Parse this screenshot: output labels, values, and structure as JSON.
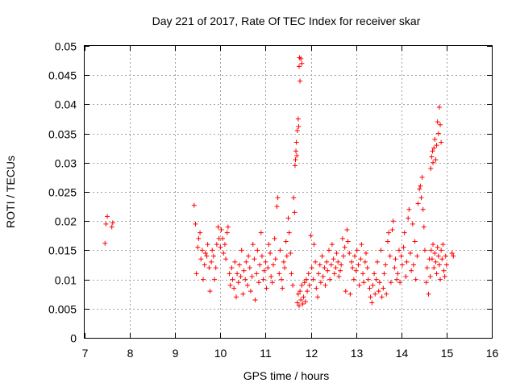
{
  "chart_data": {
    "type": "scatter",
    "title": "Day 221 of 2017, Rate Of TEC Index for receiver skar",
    "xlabel": "GPS time / hours",
    "ylabel": "ROTI / TECUs",
    "xlim": [
      7,
      16
    ],
    "ylim": [
      0,
      0.05
    ],
    "x_ticks": [
      7,
      8,
      9,
      10,
      11,
      12,
      13,
      14,
      15,
      16
    ],
    "x_tick_labels": [
      "7",
      "8",
      "9",
      "10",
      "11",
      "12",
      "13",
      "14",
      "15",
      "16"
    ],
    "y_ticks": [
      0,
      0.005,
      0.01,
      0.015,
      0.02,
      0.025,
      0.03,
      0.035,
      0.04,
      0.045,
      0.05
    ],
    "y_tick_labels": [
      "0",
      "0.005",
      "0.01",
      "0.015",
      "0.02",
      "0.025",
      "0.03",
      "0.035",
      "0.04",
      "0.045",
      "0.05"
    ],
    "grid": true,
    "marker": "plus",
    "series": [
      {
        "name": "ROTI",
        "color": "#ff0000",
        "points": [
          [
            7.45,
            0.0162
          ],
          [
            7.47,
            0.0195
          ],
          [
            7.5,
            0.0208
          ],
          [
            7.6,
            0.019
          ],
          [
            7.62,
            0.0197
          ],
          [
            9.42,
            0.0227
          ],
          [
            9.45,
            0.0195
          ],
          [
            9.47,
            0.011
          ],
          [
            9.5,
            0.0155
          ],
          [
            9.52,
            0.017
          ],
          [
            9.55,
            0.018
          ],
          [
            9.57,
            0.0135
          ],
          [
            9.6,
            0.015
          ],
          [
            9.62,
            0.01
          ],
          [
            9.65,
            0.0125
          ],
          [
            9.67,
            0.0145
          ],
          [
            9.7,
            0.014
          ],
          [
            9.72,
            0.016
          ],
          [
            9.75,
            0.012
          ],
          [
            9.77,
            0.008
          ],
          [
            9.8,
            0.013
          ],
          [
            9.82,
            0.015
          ],
          [
            9.85,
            0.014
          ],
          [
            9.87,
            0.01
          ],
          [
            9.9,
            0.012
          ],
          [
            9.92,
            0.016
          ],
          [
            9.95,
            0.019
          ],
          [
            9.97,
            0.017
          ],
          [
            10.0,
            0.0155
          ],
          [
            10.02,
            0.0185
          ],
          [
            10.05,
            0.017
          ],
          [
            10.07,
            0.0145
          ],
          [
            10.1,
            0.016
          ],
          [
            10.12,
            0.0135
          ],
          [
            10.15,
            0.018
          ],
          [
            10.17,
            0.019
          ],
          [
            10.2,
            0.011
          ],
          [
            10.22,
            0.009
          ],
          [
            10.25,
            0.012
          ],
          [
            10.27,
            0.01
          ],
          [
            10.3,
            0.0085
          ],
          [
            10.32,
            0.013
          ],
          [
            10.35,
            0.007
          ],
          [
            10.37,
            0.011
          ],
          [
            10.4,
            0.0095
          ],
          [
            10.42,
            0.0125
          ],
          [
            10.45,
            0.0105
          ],
          [
            10.47,
            0.015
          ],
          [
            10.5,
            0.0075
          ],
          [
            10.52,
            0.0115
          ],
          [
            10.55,
            0.01
          ],
          [
            10.57,
            0.013
          ],
          [
            10.6,
            0.009
          ],
          [
            10.62,
            0.014
          ],
          [
            10.65,
            0.012
          ],
          [
            10.67,
            0.008
          ],
          [
            10.7,
            0.0105
          ],
          [
            10.72,
            0.016
          ],
          [
            10.75,
            0.0135
          ],
          [
            10.77,
            0.0065
          ],
          [
            10.8,
            0.011
          ],
          [
            10.82,
            0.015
          ],
          [
            10.85,
            0.0095
          ],
          [
            10.87,
            0.0125
          ],
          [
            10.9,
            0.018
          ],
          [
            10.92,
            0.014
          ],
          [
            10.95,
            0.01
          ],
          [
            10.97,
            0.0115
          ],
          [
            11.0,
            0.013
          ],
          [
            11.02,
            0.0085
          ],
          [
            11.05,
            0.012
          ],
          [
            11.07,
            0.016
          ],
          [
            11.1,
            0.0145
          ],
          [
            11.12,
            0.0105
          ],
          [
            11.15,
            0.0095
          ],
          [
            11.17,
            0.0125
          ],
          [
            11.2,
            0.017
          ],
          [
            11.22,
            0.0135
          ],
          [
            11.25,
            0.0225
          ],
          [
            11.27,
            0.024
          ],
          [
            11.3,
            0.011
          ],
          [
            11.32,
            0.015
          ],
          [
            11.35,
            0.01
          ],
          [
            11.37,
            0.0085
          ],
          [
            11.4,
            0.013
          ],
          [
            11.42,
            0.012
          ],
          [
            11.45,
            0.0165
          ],
          [
            11.47,
            0.014
          ],
          [
            11.5,
            0.0205
          ],
          [
            11.52,
            0.018
          ],
          [
            11.55,
            0.0145
          ],
          [
            11.57,
            0.011
          ],
          [
            11.6,
            0.009
          ],
          [
            11.62,
            0.024
          ],
          [
            11.64,
            0.0215
          ],
          [
            11.65,
            0.0295
          ],
          [
            11.66,
            0.0305
          ],
          [
            11.67,
            0.032
          ],
          [
            11.68,
            0.0335
          ],
          [
            11.69,
            0.0312
          ],
          [
            11.7,
            0.0355
          ],
          [
            11.72,
            0.0375
          ],
          [
            11.73,
            0.0362
          ],
          [
            11.74,
            0.0465
          ],
          [
            11.75,
            0.048
          ],
          [
            11.76,
            0.044
          ],
          [
            11.78,
            0.0478
          ],
          [
            11.8,
            0.047
          ],
          [
            11.7,
            0.006
          ],
          [
            11.72,
            0.0075
          ],
          [
            11.74,
            0.0055
          ],
          [
            11.76,
            0.008
          ],
          [
            11.78,
            0.0065
          ],
          [
            11.8,
            0.009
          ],
          [
            11.82,
            0.0058
          ],
          [
            11.84,
            0.007
          ],
          [
            11.86,
            0.0095
          ],
          [
            11.88,
            0.0062
          ],
          [
            11.9,
            0.01
          ],
          [
            11.92,
            0.008
          ],
          [
            11.95,
            0.011
          ],
          [
            11.97,
            0.009
          ],
          [
            12.0,
            0.0175
          ],
          [
            12.02,
            0.012
          ],
          [
            12.05,
            0.01
          ],
          [
            12.07,
            0.016
          ],
          [
            12.1,
            0.013
          ],
          [
            12.12,
            0.0085
          ],
          [
            12.15,
            0.007
          ],
          [
            12.17,
            0.011
          ],
          [
            12.2,
            0.0125
          ],
          [
            12.22,
            0.0095
          ],
          [
            12.25,
            0.014
          ],
          [
            12.27,
            0.0105
          ],
          [
            12.3,
            0.012
          ],
          [
            12.32,
            0.009
          ],
          [
            12.35,
            0.013
          ],
          [
            12.37,
            0.0115
          ],
          [
            12.4,
            0.015
          ],
          [
            12.42,
            0.01
          ],
          [
            12.45,
            0.0125
          ],
          [
            12.47,
            0.016
          ],
          [
            12.5,
            0.0135
          ],
          [
            12.52,
            0.011
          ],
          [
            12.55,
            0.012
          ],
          [
            12.57,
            0.0145
          ],
          [
            12.6,
            0.013
          ],
          [
            12.62,
            0.0105
          ],
          [
            12.65,
            0.0115
          ],
          [
            12.67,
            0.0125
          ],
          [
            12.7,
            0.017
          ],
          [
            12.72,
            0.014
          ],
          [
            12.75,
            0.0155
          ],
          [
            12.77,
            0.008
          ],
          [
            12.8,
            0.0185
          ],
          [
            12.82,
            0.0165
          ],
          [
            12.85,
            0.0145
          ],
          [
            12.87,
            0.0075
          ],
          [
            12.9,
            0.013
          ],
          [
            12.92,
            0.012
          ],
          [
            12.95,
            0.01
          ],
          [
            12.97,
            0.014
          ],
          [
            13.0,
            0.0115
          ],
          [
            13.02,
            0.015
          ],
          [
            13.05,
            0.0125
          ],
          [
            13.07,
            0.009
          ],
          [
            13.1,
            0.0135
          ],
          [
            13.12,
            0.016
          ],
          [
            13.15,
            0.011
          ],
          [
            13.17,
            0.0095
          ],
          [
            13.2,
            0.013
          ],
          [
            13.22,
            0.0145
          ],
          [
            13.25,
            0.012
          ],
          [
            13.27,
            0.01
          ],
          [
            13.3,
            0.0085
          ],
          [
            13.32,
            0.007
          ],
          [
            13.35,
            0.006
          ],
          [
            13.37,
            0.009
          ],
          [
            13.4,
            0.011
          ],
          [
            13.42,
            0.0075
          ],
          [
            13.45,
            0.01
          ],
          [
            13.47,
            0.013
          ],
          [
            13.5,
            0.008
          ],
          [
            13.52,
            0.0095
          ],
          [
            13.55,
            0.015
          ],
          [
            13.57,
            0.007
          ],
          [
            13.6,
            0.0085
          ],
          [
            13.62,
            0.011
          ],
          [
            13.65,
            0.0125
          ],
          [
            13.67,
            0.0075
          ],
          [
            13.7,
            0.0165
          ],
          [
            13.72,
            0.018
          ],
          [
            13.75,
            0.014
          ],
          [
            13.77,
            0.0095
          ],
          [
            13.8,
            0.0185
          ],
          [
            13.82,
            0.02
          ],
          [
            13.85,
            0.012
          ],
          [
            13.87,
            0.0135
          ],
          [
            13.9,
            0.01
          ],
          [
            13.92,
            0.011
          ],
          [
            13.95,
            0.015
          ],
          [
            13.97,
            0.0095
          ],
          [
            14.0,
            0.014
          ],
          [
            14.02,
            0.0125
          ],
          [
            14.05,
            0.0155
          ],
          [
            14.07,
            0.018
          ],
          [
            14.1,
            0.0105
          ],
          [
            14.12,
            0.013
          ],
          [
            14.15,
            0.0205
          ],
          [
            14.17,
            0.022
          ],
          [
            14.2,
            0.0145
          ],
          [
            14.22,
            0.0115
          ],
          [
            14.25,
            0.0195
          ],
          [
            14.27,
            0.0125
          ],
          [
            14.3,
            0.0165
          ],
          [
            14.32,
            0.01
          ],
          [
            14.35,
            0.014
          ],
          [
            14.37,
            0.023
          ],
          [
            14.4,
            0.0255
          ],
          [
            14.42,
            0.026
          ],
          [
            14.44,
            0.024
          ],
          [
            14.46,
            0.0275
          ],
          [
            14.48,
            0.022
          ],
          [
            14.5,
            0.019
          ],
          [
            14.52,
            0.015
          ],
          [
            14.55,
            0.0095
          ],
          [
            14.57,
            0.012
          ],
          [
            14.6,
            0.0075
          ],
          [
            14.62,
            0.0135
          ],
          [
            14.64,
            0.0105
          ],
          [
            14.65,
            0.029
          ],
          [
            14.67,
            0.031
          ],
          [
            14.69,
            0.032
          ],
          [
            14.7,
            0.03
          ],
          [
            14.72,
            0.0325
          ],
          [
            14.74,
            0.034
          ],
          [
            14.76,
            0.0305
          ],
          [
            14.78,
            0.033
          ],
          [
            14.8,
            0.037
          ],
          [
            14.82,
            0.035
          ],
          [
            14.84,
            0.0395
          ],
          [
            14.86,
            0.0365
          ],
          [
            14.88,
            0.0335
          ],
          [
            14.66,
            0.015
          ],
          [
            14.68,
            0.0135
          ],
          [
            14.7,
            0.016
          ],
          [
            14.72,
            0.012
          ],
          [
            14.74,
            0.0145
          ],
          [
            14.76,
            0.013
          ],
          [
            14.78,
            0.011
          ],
          [
            14.8,
            0.0155
          ],
          [
            14.82,
            0.014
          ],
          [
            14.84,
            0.0125
          ],
          [
            14.86,
            0.01
          ],
          [
            14.88,
            0.015
          ],
          [
            14.9,
            0.0135
          ],
          [
            14.92,
            0.016
          ],
          [
            14.94,
            0.0115
          ],
          [
            14.96,
            0.0105
          ],
          [
            14.98,
            0.014
          ],
          [
            15.0,
            0.0125
          ],
          [
            15.12,
            0.0145
          ],
          [
            15.15,
            0.014
          ]
        ]
      }
    ]
  }
}
